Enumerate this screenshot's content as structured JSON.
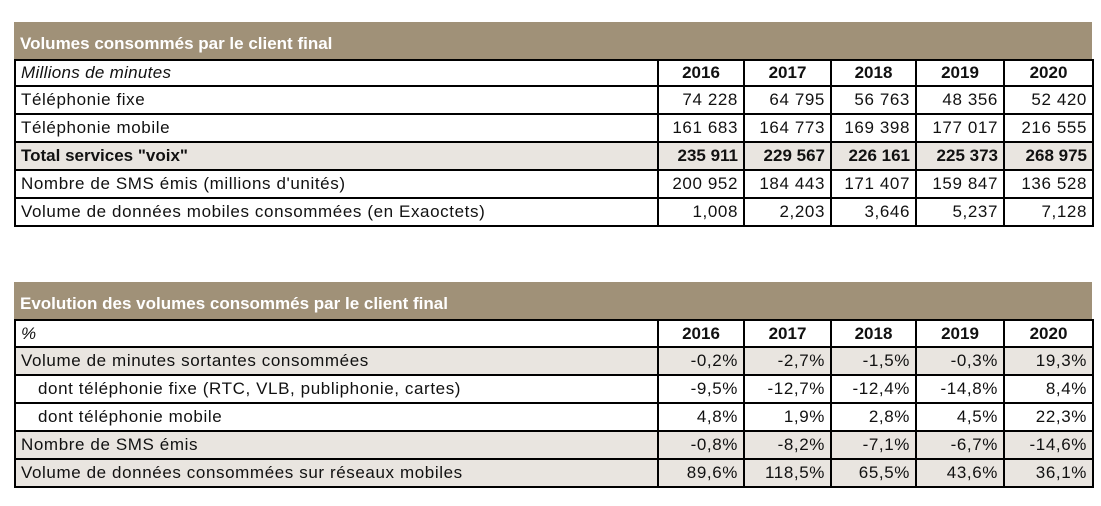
{
  "table1": {
    "title": "Volumes consommés par le client final",
    "unit_label": "Millions de minutes",
    "years": [
      "2016",
      "2017",
      "2018",
      "2019",
      "2020"
    ],
    "rows": [
      {
        "label": "Téléphonie fixe",
        "values": [
          "74 228",
          "64 795",
          "56 763",
          "48 356",
          "52 420"
        ]
      },
      {
        "label": "Téléphonie mobile",
        "values": [
          "161 683",
          "164 773",
          "169 398",
          "177 017",
          "216 555"
        ]
      },
      {
        "label": "Total services \"voix\"",
        "values": [
          "235 911",
          "229 567",
          "226 161",
          "225 373",
          "268 975"
        ]
      },
      {
        "label": "Nombre de SMS émis (millions d'unités)",
        "values": [
          "200 952",
          "184 443",
          "171 407",
          "159 847",
          "136 528"
        ]
      },
      {
        "label": "Volume de données mobiles consommées (en Exaoctets)",
        "values": [
          "1,008",
          "2,203",
          "3,646",
          "5,237",
          "7,128"
        ]
      }
    ]
  },
  "table2": {
    "title": "Evolution des volumes consommés par le client final",
    "unit_label": "%",
    "years": [
      "2016",
      "2017",
      "2018",
      "2019",
      "2020"
    ],
    "rows": [
      {
        "label": "Volume de minutes sortantes consommées",
        "values": [
          "-0,2%",
          "-2,7%",
          "-1,5%",
          "-0,3%",
          "19,3%"
        ]
      },
      {
        "label": "dont téléphonie fixe (RTC, VLB, publiphonie, cartes)",
        "values": [
          "-9,5%",
          "-12,7%",
          "-12,4%",
          "-14,8%",
          "8,4%"
        ]
      },
      {
        "label": "dont téléphonie mobile",
        "values": [
          "4,8%",
          "1,9%",
          "2,8%",
          "4,5%",
          "22,3%"
        ]
      },
      {
        "label": "Nombre de SMS émis",
        "values": [
          "-0,8%",
          "-8,2%",
          "-7,1%",
          "-6,7%",
          "-14,6%"
        ]
      },
      {
        "label": "Volume de données consommées sur réseaux mobiles",
        "values": [
          "89,6%",
          "118,5%",
          "65,5%",
          "43,6%",
          "36,1%"
        ]
      }
    ]
  },
  "colors": {
    "title_bar": "#a09178",
    "highlight_row": "#e9e5e0"
  }
}
